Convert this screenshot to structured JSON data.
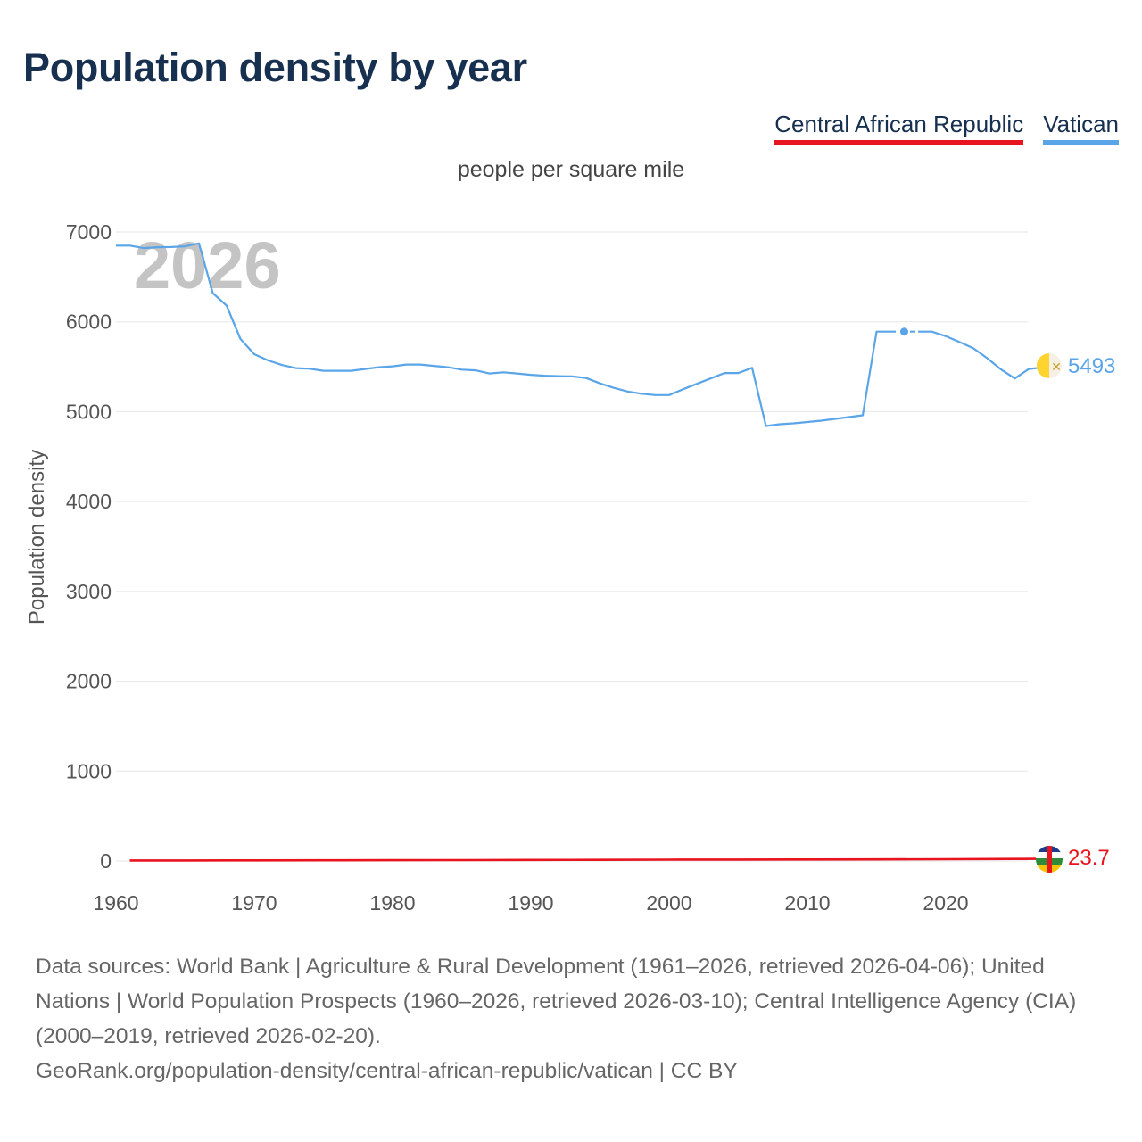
{
  "title": "Population density by year",
  "unit_label": "people per square mile",
  "legend": [
    {
      "label": "Central African Republic",
      "color": "#e8141f"
    },
    {
      "label": "Vatican",
      "color": "#5aa5e8"
    }
  ],
  "year_label": "2026",
  "footer": {
    "sources": "Data sources: World Bank | Agriculture & Rural Development (1961–2026, retrieved 2026-04-06); United Nations | World Population Prospects (1960–2026, retrieved 2026-03-10); Central Intelligence Agency (CIA) (2000–2019, retrieved 2026-02-20).",
    "credit": "GeoRank.org/population-density/central-african-republic/vatican | CC BY"
  },
  "chart_data": {
    "type": "line",
    "title": "Population density by year",
    "subtitle": "people per square mile",
    "xlabel": "",
    "ylabel": "Population density",
    "xlim": [
      1960,
      2026
    ],
    "ylim": [
      0,
      7000
    ],
    "x_ticks": [
      1960,
      1970,
      1980,
      1990,
      2000,
      2010,
      2020
    ],
    "y_ticks": [
      0,
      1000,
      2000,
      3000,
      4000,
      5000,
      6000,
      7000
    ],
    "grid": true,
    "legend_position": "top-right",
    "series": [
      {
        "name": "Vatican",
        "color": "#5aa5e8",
        "end_value_label": "5493",
        "gap_years": [
          2016,
          2018
        ],
        "highlight_point": [
          2017,
          5891
        ],
        "points": [
          [
            1960,
            6848
          ],
          [
            1961,
            6848
          ],
          [
            1962,
            6820
          ],
          [
            1963,
            6830
          ],
          [
            1964,
            6832
          ],
          [
            1965,
            6840
          ],
          [
            1966,
            6873
          ],
          [
            1967,
            6320
          ],
          [
            1968,
            6180
          ],
          [
            1969,
            5810
          ],
          [
            1970,
            5640
          ],
          [
            1971,
            5570
          ],
          [
            1972,
            5520
          ],
          [
            1973,
            5485
          ],
          [
            1974,
            5478
          ],
          [
            1975,
            5455
          ],
          [
            1976,
            5455
          ],
          [
            1977,
            5455
          ],
          [
            1978,
            5475
          ],
          [
            1979,
            5495
          ],
          [
            1980,
            5505
          ],
          [
            1981,
            5525
          ],
          [
            1982,
            5525
          ],
          [
            1983,
            5510
          ],
          [
            1984,
            5495
          ],
          [
            1985,
            5468
          ],
          [
            1986,
            5460
          ],
          [
            1987,
            5425
          ],
          [
            1988,
            5438
          ],
          [
            1989,
            5425
          ],
          [
            1990,
            5410
          ],
          [
            1991,
            5400
          ],
          [
            1992,
            5395
          ],
          [
            1993,
            5392
          ],
          [
            1994,
            5375
          ],
          [
            1995,
            5315
          ],
          [
            1996,
            5265
          ],
          [
            1997,
            5225
          ],
          [
            1998,
            5200
          ],
          [
            1999,
            5185
          ],
          [
            2000,
            5185
          ],
          [
            2001,
            5250
          ],
          [
            2002,
            5310
          ],
          [
            2003,
            5370
          ],
          [
            2004,
            5430
          ],
          [
            2005,
            5430
          ],
          [
            2006,
            5488
          ],
          [
            2007,
            4840
          ],
          [
            2008,
            4860
          ],
          [
            2009,
            4870
          ],
          [
            2010,
            4885
          ],
          [
            2011,
            4900
          ],
          [
            2012,
            4920
          ],
          [
            2013,
            4940
          ],
          [
            2014,
            4960
          ],
          [
            2015,
            5891
          ],
          [
            2016,
            5891
          ],
          [
            2017,
            5891
          ],
          [
            2018,
            5891
          ],
          [
            2019,
            5891
          ],
          [
            2020,
            5840
          ],
          [
            2021,
            5775
          ],
          [
            2022,
            5705
          ],
          [
            2023,
            5595
          ],
          [
            2024,
            5470
          ],
          [
            2025,
            5370
          ],
          [
            2026,
            5475
          ],
          [
            2027,
            5493
          ]
        ]
      },
      {
        "name": "Central African Republic",
        "color": "#e8141f",
        "end_value_label": "23.7",
        "points": [
          [
            1961,
            5.5
          ],
          [
            1965,
            6.0
          ],
          [
            1970,
            7.0
          ],
          [
            1975,
            8.0
          ],
          [
            1980,
            9.0
          ],
          [
            1985,
            10.4
          ],
          [
            1990,
            11.8
          ],
          [
            1995,
            13.2
          ],
          [
            2000,
            14.5
          ],
          [
            2005,
            15.8
          ],
          [
            2010,
            17.2
          ],
          [
            2015,
            18.3
          ],
          [
            2020,
            20.3
          ],
          [
            2025,
            22.5
          ],
          [
            2027,
            23.7
          ]
        ]
      }
    ]
  }
}
